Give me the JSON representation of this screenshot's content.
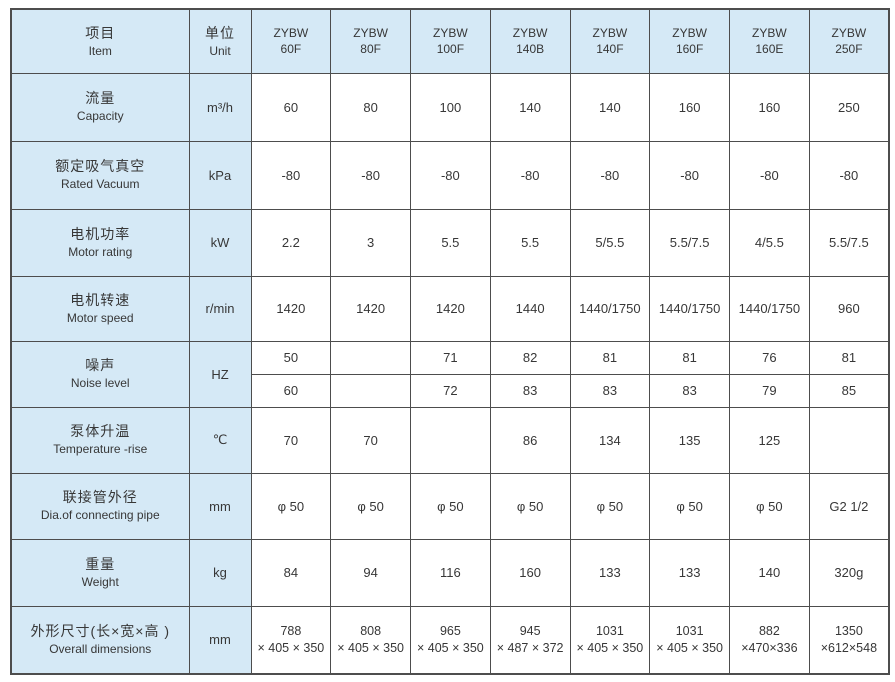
{
  "colors": {
    "header_bg": "#d5e9f6",
    "border": "#4d4d4d",
    "text": "#373737"
  },
  "table": {
    "header": {
      "item_zh": "项目",
      "item_en": "Item",
      "unit_zh": "单位",
      "unit_en": "Unit",
      "models": [
        {
          "brand": "ZYBW",
          "model": "60F"
        },
        {
          "brand": "ZYBW",
          "model": "80F"
        },
        {
          "brand": "ZYBW",
          "model": "100F"
        },
        {
          "brand": "ZYBW",
          "model": "140B"
        },
        {
          "brand": "ZYBW",
          "model": "140F"
        },
        {
          "brand": "ZYBW",
          "model": "160F"
        },
        {
          "brand": "ZYBW",
          "model": "160E"
        },
        {
          "brand": "ZYBW",
          "model": "250F"
        }
      ]
    },
    "rows": {
      "capacity": {
        "zh": "流量",
        "en": "Capacity",
        "unit": "m³/h",
        "values": [
          "60",
          "80",
          "100",
          "140",
          "140",
          "160",
          "160",
          "250"
        ]
      },
      "vacuum": {
        "zh": "额定吸气真空",
        "en": "Rated Vacuum",
        "unit": "kPa",
        "values": [
          "-80",
          "-80",
          "-80",
          "-80",
          "-80",
          "-80",
          "-80",
          "-80"
        ]
      },
      "motor_rating": {
        "zh": "电机功率",
        "en": "Motor rating",
        "unit": "kW",
        "values": [
          "2.2",
          "3",
          "5.5",
          "5.5",
          "5/5.5",
          "5.5/7.5",
          "4/5.5",
          "5.5/7.5"
        ]
      },
      "motor_speed": {
        "zh": "电机转速",
        "en": "Motor speed",
        "unit": "r/min",
        "values": [
          "1420",
          "1420",
          "1420",
          "1440",
          "1440/1750",
          "1440/1750",
          "1440/1750",
          "960"
        ]
      },
      "noise": {
        "zh": "噪声",
        "en": "Noise level",
        "unit": "HZ",
        "values_50hz": [
          "50",
          "",
          "71",
          "82",
          "81",
          "81",
          "76",
          "81"
        ],
        "values_60hz": [
          "60",
          "",
          "72",
          "83",
          "83",
          "83",
          "79",
          "85"
        ]
      },
      "temp_rise": {
        "zh": "泵体升温",
        "en": "Temperature -rise",
        "unit": "℃",
        "values": [
          "70",
          "70",
          "",
          "86",
          "134",
          "135",
          "125",
          ""
        ]
      },
      "pipe_dia": {
        "zh": "联接管外径",
        "en": "Dia.of connecting pipe",
        "unit": "mm",
        "values": [
          "φ 50",
          "φ 50",
          "φ 50",
          "φ 50",
          "φ 50",
          "φ 50",
          "φ 50",
          "G2  1/2"
        ]
      },
      "weight": {
        "zh": "重量",
        "en": "Weight",
        "unit": "kg",
        "values": [
          "84",
          "94",
          "116",
          "160",
          "133",
          "133",
          "140",
          "320g"
        ]
      },
      "dimensions": {
        "zh": "外形尺寸(长×宽×高 )",
        "en": "Overall dimensions",
        "unit": "mm",
        "values": [
          {
            "l1": "788",
            "l2": "× 405 × 350"
          },
          {
            "l1": "808",
            "l2": "× 405 × 350"
          },
          {
            "l1": "965",
            "l2": "× 405 × 350"
          },
          {
            "l1": "945",
            "l2": "× 487 × 372"
          },
          {
            "l1": "1031",
            "l2": "× 405 × 350"
          },
          {
            "l1": "1031",
            "l2": "× 405 × 350"
          },
          {
            "l1": "882",
            "l2": "×470×336"
          },
          {
            "l1": "1350",
            "l2": "×612×548"
          }
        ]
      }
    }
  }
}
